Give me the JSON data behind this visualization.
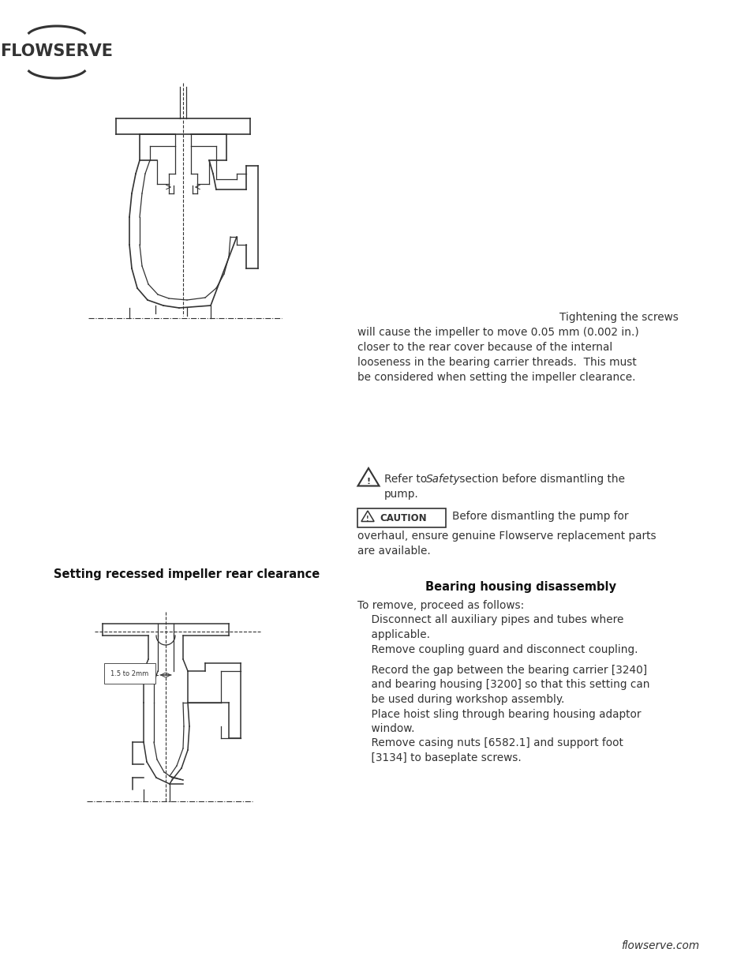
{
  "background_color": "#ffffff",
  "text_color": "#333333",
  "logo_text": "FLOWSERVE",
  "para1_lines": [
    [
      "right",
      "Tightening the screws"
    ],
    [
      "left",
      "will cause the impeller to move 0.05 mm (0.002 in.)"
    ],
    [
      "left",
      "closer to the rear cover because of the internal"
    ],
    [
      "left",
      "looseness in the bearing carrier threads.  This must"
    ],
    [
      "left",
      "be considered when setting the impeller clearance."
    ]
  ],
  "section_heading": "Setting recessed impeller rear clearance",
  "bearing_heading": "Bearing housing disassembly",
  "bearing_lines": [
    "To remove, proceed as follows:",
    "    Disconnect all auxiliary pipes and tubes where",
    "    applicable.",
    "    Remove coupling guard and disconnect coupling.",
    "",
    "    Record the gap between the bearing carrier [3240]",
    "    and bearing housing [3200] so that this setting can",
    "    be used during workshop assembly.",
    "    Place hoist sling through bearing housing adaptor",
    "    window.",
    "    Remove casing nuts [6582.1] and support foot",
    "    [3134] to baseplate screws."
  ],
  "footer_text": "flowserve.com"
}
